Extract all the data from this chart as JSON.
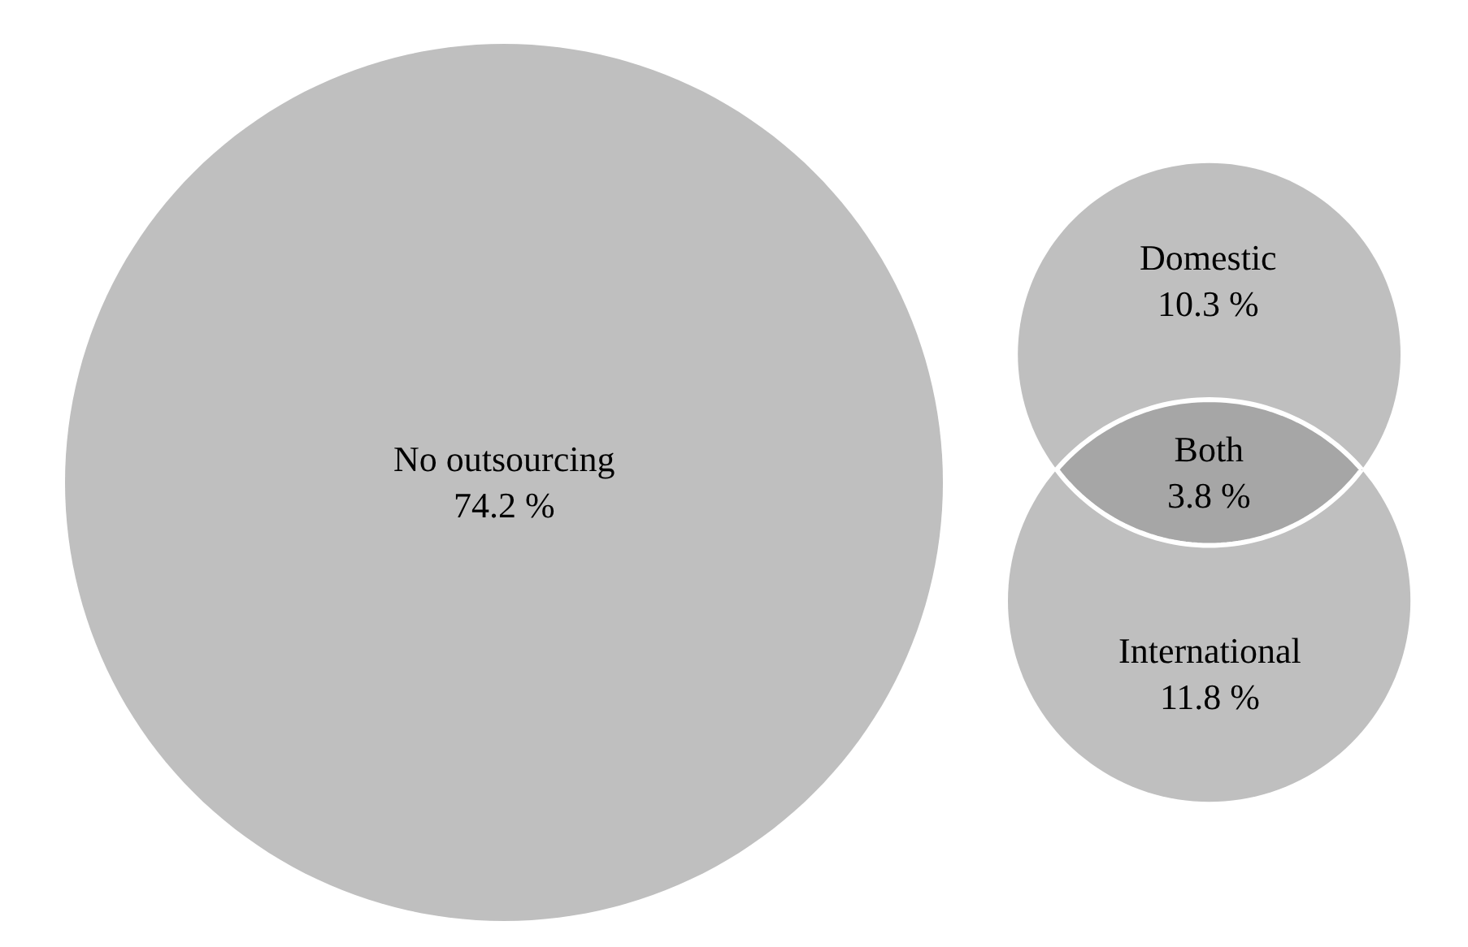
{
  "chart_data": {
    "type": "other",
    "categories": [
      "No outsourcing",
      "Domestic",
      "Both",
      "International"
    ],
    "values": [
      74.2,
      10.3,
      3.8,
      11.8
    ],
    "value_labels": [
      "74.2 %",
      "10.3 %",
      "3.8 %",
      "11.8 %"
    ],
    "colors": [
      "#bfbfbf",
      "#bfbfbf",
      "#a6a6a6",
      "#bfbfbf"
    ]
  }
}
